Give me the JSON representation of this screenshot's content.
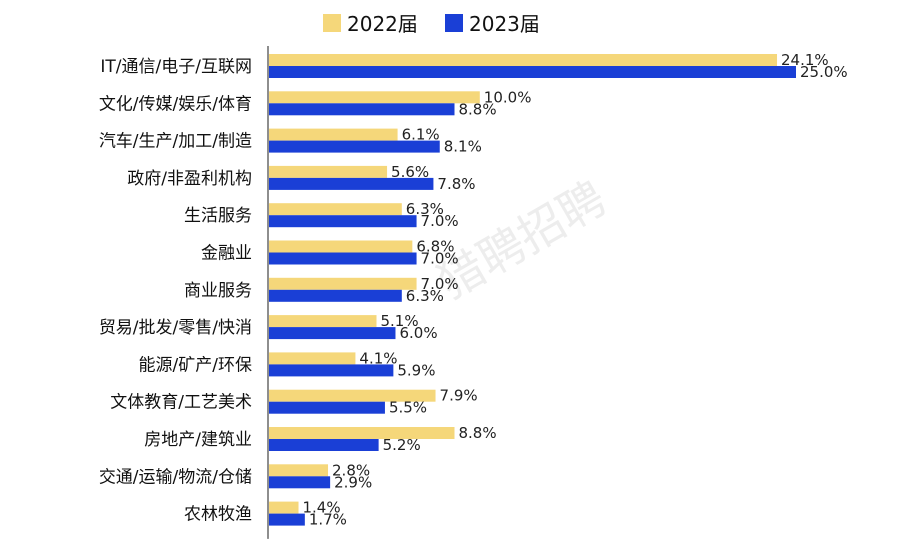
{
  "chart_data": {
    "type": "bar",
    "orientation": "horizontal",
    "categories": [
      "IT/通信/电子/互联网",
      "文化/传媒/娱乐/体育",
      "汽车/生产/加工/制造",
      "政府/非盈利机构",
      "生活服务",
      "金融业",
      "商业服务",
      "贸易/批发/零售/快消",
      "能源/矿产/环保",
      "文体教育/工艺美术",
      "房地产/建筑业",
      "交通/运输/物流/仓储",
      "农林牧渔"
    ],
    "series": [
      {
        "name": "2022届",
        "color": "#f5d77a",
        "values": [
          24.1,
          10.0,
          6.1,
          5.6,
          6.3,
          6.8,
          7.0,
          5.1,
          4.1,
          7.9,
          8.8,
          2.8,
          1.4
        ],
        "labels": [
          "24.1%",
          "10.0%",
          "6.1%",
          "5.6%",
          "6.3%",
          "6.8%",
          "7.0%",
          "5.1%",
          "4.1%",
          "7.9%",
          "8.8%",
          "2.8%",
          "1.4%"
        ]
      },
      {
        "name": "2023届",
        "color": "#1a3fd6",
        "values": [
          25.0,
          8.8,
          8.1,
          7.8,
          7.0,
          7.0,
          6.3,
          6.0,
          5.9,
          5.5,
          5.2,
          2.9,
          1.7
        ],
        "labels": [
          "25.0%",
          "8.8%",
          "8.1%",
          "7.8%",
          "7.0%",
          "7.0%",
          "6.3%",
          "6.0%",
          "5.9%",
          "5.5%",
          "5.2%",
          "2.9%",
          "1.7%"
        ]
      }
    ],
    "xlim": [
      0,
      25
    ],
    "legend_position": "top-center",
    "grid": false
  },
  "watermark": "猎聘招聘"
}
